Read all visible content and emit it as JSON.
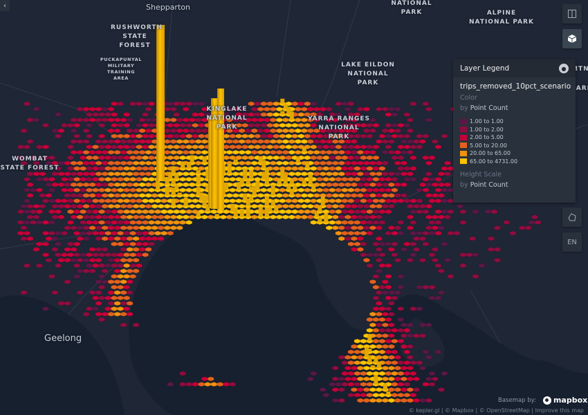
{
  "map": {
    "labels": {
      "shepparton": "Shepparton",
      "rushworth": "RUSHWORTH\nSTATE\nFOREST",
      "puckapunyal": "PUCKAPUNYAL\nMILITARY\nTRAINING\nAREA",
      "national_park_top": "NATIONAL\nPARK",
      "alpine": "ALPINE\nNATIONAL PARK",
      "lake_eildon": "LAKE EILDON\nNATIONAL\nPARK",
      "kinglake": "KINGLAKE\nNATIONAL\nPARK",
      "yarra": "YARRA RANGES\nNATIONAL\nPARK",
      "wombat": "WOMBAT\nSTATE FOREST",
      "geelong": "Geelong",
      "edge_mtn": "MTN",
      "edge_park": "PARK"
    }
  },
  "controls": {
    "split_icon": "split-map-icon",
    "view3d_icon": "cube-3d-icon",
    "draw_icon": "polygon-draw-icon",
    "locale": "EN",
    "collapse_icon": "chevron-left-icon"
  },
  "legend": {
    "title": "Layer Legend",
    "layer_name": "trips_removed_10pct_scenario",
    "color_label": "Color",
    "by_prefix": "by",
    "color_by": "Point Count",
    "color_ranges": [
      {
        "label": "1.00 to 1.00",
        "color": "#5a1846"
      },
      {
        "label": "1.00 to 2.00",
        "color": "#900c3f"
      },
      {
        "label": "2.00 to 5.00",
        "color": "#c70039"
      },
      {
        "label": "5.00 to 20.00",
        "color": "#e3611c"
      },
      {
        "label": "20.00 to 65.00",
        "color": "#f1920e"
      },
      {
        "label": "65.00 to 4731.00",
        "color": "#ffc300"
      }
    ],
    "height_label": "Height Scale",
    "height_by": "Point Count"
  },
  "footer": {
    "basemap_by": "Basemap by:",
    "mapbox": "mapbox",
    "attribution": "© kepler.gl | © Mapbox | © OpenStreetMap | Improve this map"
  }
}
